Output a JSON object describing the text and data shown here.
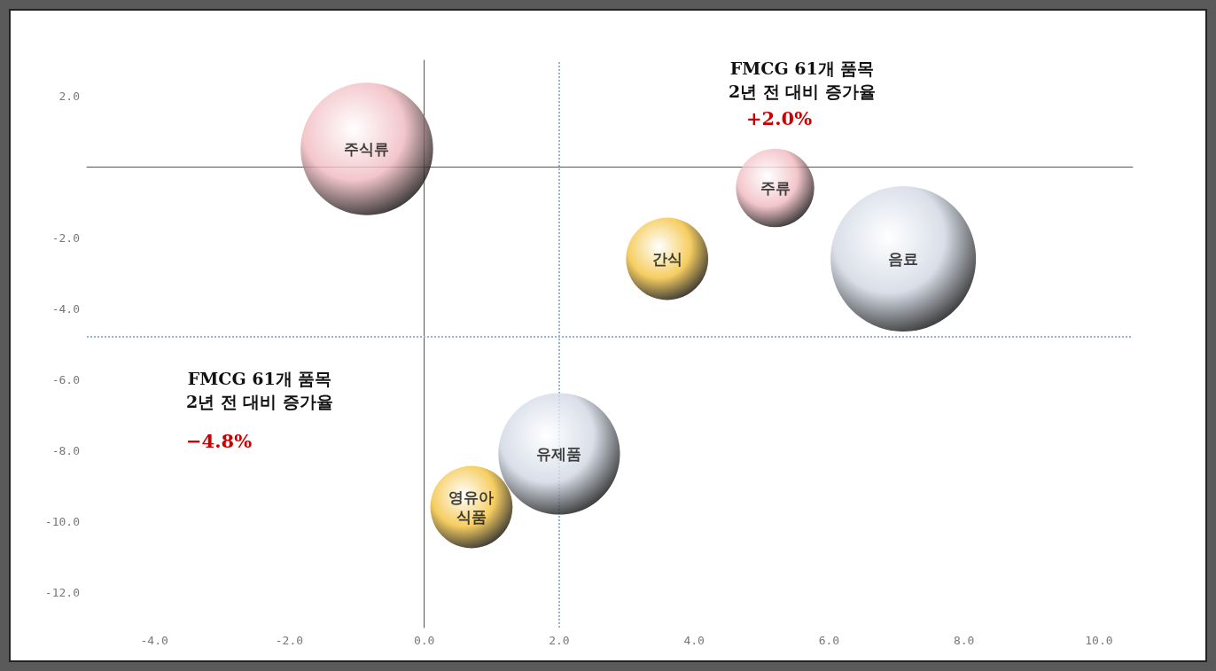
{
  "chart_data": {
    "type": "bubble",
    "x": [
      -0.85,
      5.2,
      3.6,
      7.1,
      2.0,
      0.7
    ],
    "values": [
      0.5,
      -0.6,
      -2.6,
      -2.6,
      -8.1,
      -9.6
    ],
    "sizes": [
      0.83,
      0.29,
      0.32,
      1,
      0.7,
      0.32
    ],
    "colors": [
      "#f0b8be",
      "#f0b8be",
      "#f3c13a",
      "#cfd6e3",
      "#cfd6e3",
      "#f3c13a"
    ],
    "value_labels": [
      "주식류",
      "주류",
      "간식",
      "음료",
      "유제품",
      "영유아\n식품"
    ],
    "xlim": [
      -5,
      10.5
    ],
    "xticks": [
      {
        "value": -4,
        "label": "-4.0"
      },
      {
        "value": -2,
        "label": "-2.0"
      },
      {
        "value": 0,
        "label": "0.0"
      },
      {
        "value": 2,
        "label": "2.0"
      },
      {
        "value": 4,
        "label": "4.0"
      },
      {
        "value": 6,
        "label": "6.0"
      },
      {
        "value": 8,
        "label": "8.0"
      },
      {
        "value": 10,
        "label": "10.0"
      }
    ],
    "ylim": [
      -13,
      3
    ],
    "yticks": [
      {
        "value": -12,
        "label": "-12.0"
      },
      {
        "value": -10,
        "label": "-10.0"
      },
      {
        "value": -8,
        "label": "-8.0"
      },
      {
        "value": -6,
        "label": "-6.0"
      },
      {
        "value": -4,
        "label": "-4.0"
      },
      {
        "value": -2,
        "label": "-2.0"
      },
      {
        "value": 2,
        "label": "2.0"
      }
    ],
    "ref_lines": [
      {
        "axis": "x",
        "value": 2.0,
        "color": "#8fb4e0",
        "line_style": "dotted"
      },
      {
        "axis": "y",
        "value": -4.8,
        "color": "#8fb4e0",
        "line_style": "dotted"
      }
    ],
    "annotations": [
      "FMCG 61개 품목\n2년 전 대비 증가율",
      "+2.0%",
      "FMCG 61개 품목\n2년 전 대비 증가율",
      "−4.8%"
    ],
    "grid": false
  }
}
